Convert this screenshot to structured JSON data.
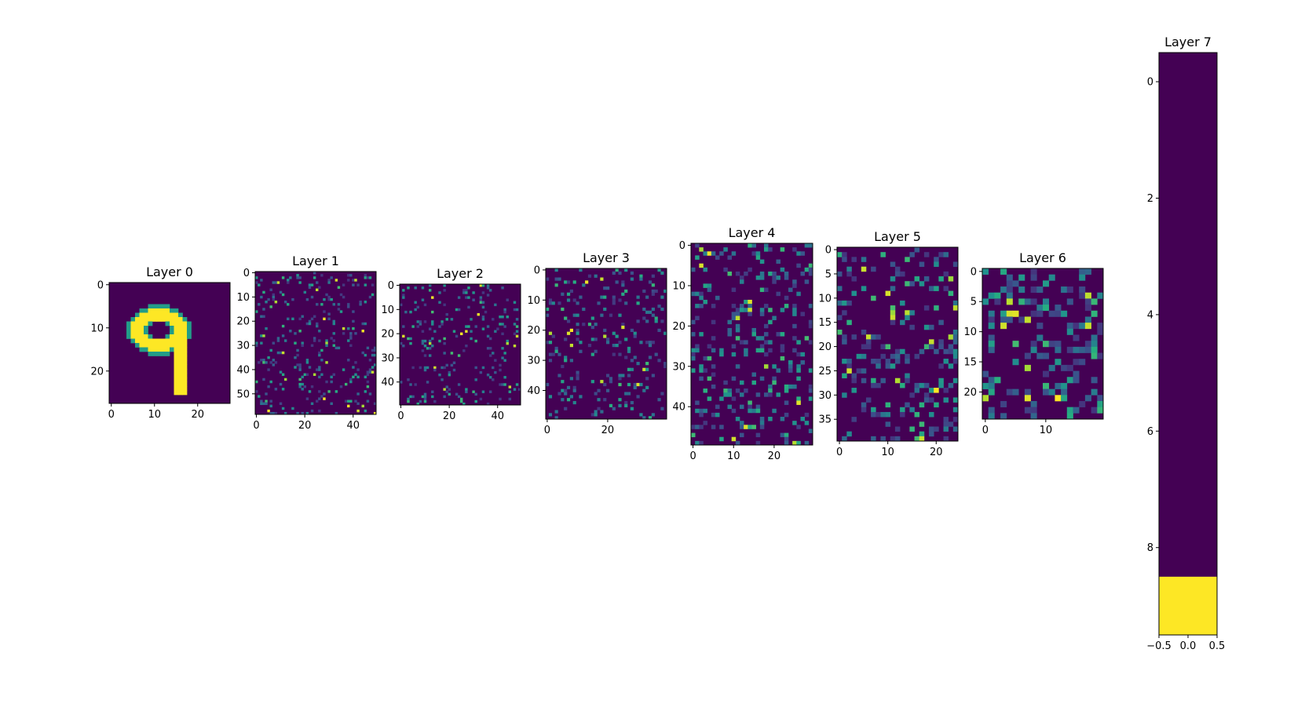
{
  "chart_data": [
    {
      "type": "heatmap",
      "title": "Layer 0",
      "rows": 28,
      "cols": 28,
      "xticks": [
        0,
        10,
        20
      ],
      "yticks": [
        0,
        10,
        20
      ],
      "content": "handwritten digit 9 (yellow stroke on dark purple background)"
    },
    {
      "type": "heatmap",
      "title": "Layer 1",
      "rows": 59,
      "cols": 50,
      "xticks": [
        0,
        20,
        40
      ],
      "yticks": [
        0,
        10,
        20,
        30,
        40,
        50
      ],
      "density": 0.1
    },
    {
      "type": "heatmap",
      "title": "Layer 2",
      "rows": 50,
      "cols": 50,
      "xticks": [
        0,
        20,
        40
      ],
      "yticks": [
        0,
        10,
        20,
        30,
        40
      ],
      "density": 0.1
    },
    {
      "type": "heatmap",
      "title": "Layer 3",
      "rows": 50,
      "cols": 40,
      "xticks": [
        0,
        20
      ],
      "yticks": [
        0,
        10,
        20,
        30,
        40
      ],
      "density": 0.12
    },
    {
      "type": "heatmap",
      "title": "Layer 4",
      "rows": 50,
      "cols": 30,
      "xticks": [
        0,
        10,
        20
      ],
      "yticks": [
        0,
        10,
        20,
        30,
        40
      ],
      "density": 0.18
    },
    {
      "type": "heatmap",
      "title": "Layer 5",
      "rows": 40,
      "cols": 25,
      "xticks": [
        0,
        10,
        20
      ],
      "yticks": [
        0,
        5,
        10,
        15,
        20,
        25,
        30,
        35
      ],
      "density": 0.2
    },
    {
      "type": "heatmap",
      "title": "Layer 6",
      "rows": 25,
      "cols": 20,
      "xticks": [
        0,
        10
      ],
      "yticks": [
        0,
        5,
        10,
        15,
        20
      ],
      "density": 0.3
    },
    {
      "type": "heatmap",
      "title": "Layer 7",
      "rows": 10,
      "cols": 1,
      "xticks": [
        -0.5,
        0.0,
        0.5
      ],
      "xtick_labels": [
        "−0.5",
        "0.0",
        "0.5"
      ],
      "yticks": [
        0,
        2,
        4,
        6,
        8
      ],
      "values": [
        0,
        0,
        0,
        0,
        0,
        0,
        0,
        0,
        0,
        1
      ]
    }
  ],
  "colors": {
    "low": "#440154",
    "mid": "#21918c",
    "high": "#fde725",
    "colormap": "viridis"
  }
}
